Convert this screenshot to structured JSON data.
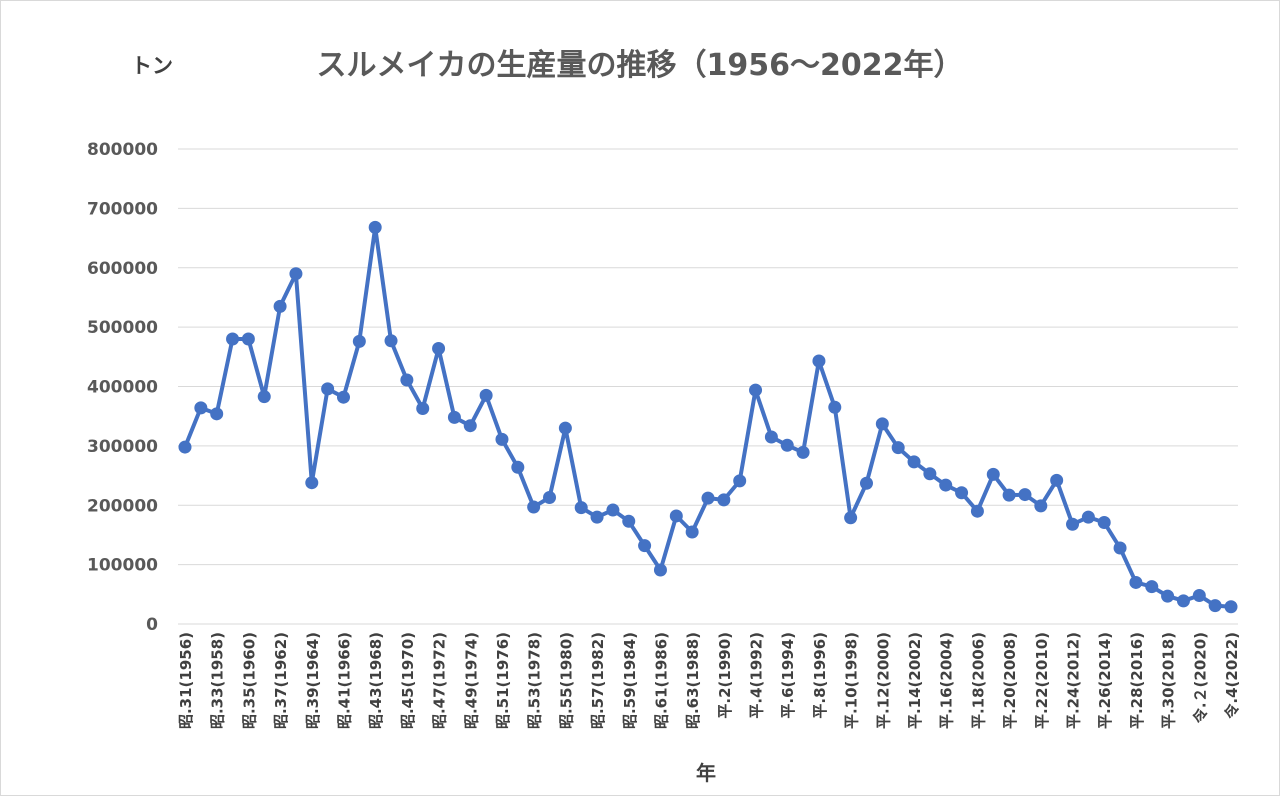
{
  "chart_data": {
    "type": "line",
    "title": "スルメイカの生産量の推移（1956～2022年）",
    "ylabel": "トン",
    "xlabel": "年",
    "ylim": [
      0,
      800000
    ],
    "yticks": [
      0,
      100000,
      200000,
      300000,
      400000,
      500000,
      600000,
      700000,
      800000
    ],
    "grid": true,
    "color": "#4472C4",
    "x": [
      1956,
      1957,
      1958,
      1959,
      1960,
      1961,
      1962,
      1963,
      1964,
      1965,
      1966,
      1967,
      1968,
      1969,
      1970,
      1971,
      1972,
      1973,
      1974,
      1975,
      1976,
      1977,
      1978,
      1979,
      1980,
      1981,
      1982,
      1983,
      1984,
      1985,
      1986,
      1987,
      1988,
      1989,
      1990,
      1991,
      1992,
      1993,
      1994,
      1995,
      1996,
      1997,
      1998,
      1999,
      2000,
      2001,
      2002,
      2003,
      2004,
      2005,
      2006,
      2007,
      2008,
      2009,
      2010,
      2011,
      2012,
      2013,
      2014,
      2015,
      2016,
      2017,
      2018,
      2019,
      2020,
      2021,
      2022
    ],
    "values": [
      298000,
      364000,
      354000,
      480000,
      480000,
      383000,
      535000,
      590000,
      238000,
      396000,
      382000,
      476000,
      668000,
      477000,
      411000,
      363000,
      464000,
      348000,
      334000,
      385000,
      311000,
      264000,
      197000,
      213000,
      330000,
      196000,
      180000,
      192000,
      173000,
      132000,
      91000,
      182000,
      155000,
      212000,
      209000,
      241000,
      394000,
      315000,
      301000,
      289000,
      443000,
      365000,
      179000,
      237000,
      337000,
      297000,
      273000,
      253000,
      234000,
      221000,
      190000,
      252000,
      217000,
      218000,
      199000,
      242000,
      168000,
      180000,
      171000,
      128000,
      70000,
      63000,
      47000,
      39000,
      48000,
      31000,
      29000
    ],
    "categories": [
      "昭.31(1956)",
      "昭.33(1958)",
      "昭.35(1960)",
      "昭.37(1962)",
      "昭.39(1964)",
      "昭.41(1966)",
      "昭.43(1968)",
      "昭.45(1970)",
      "昭.47(1972)",
      "昭.49(1974)",
      "昭.51(1976)",
      "昭.53(1978)",
      "昭.55(1980)",
      "昭.57(1982)",
      "昭.59(1984)",
      "昭.61(1986)",
      "昭.63(1988)",
      "平.2(1990)",
      "平.4(1992)",
      "平.6(1994)",
      "平.8(1996)",
      "平.10(1998)",
      "平.12(2000)",
      "平.14(2002)",
      "平.16(2004)",
      "平.18(2006)",
      "平.20(2008)",
      "平.22(2010)",
      "平.24(2012)",
      "平.26(2014)",
      "平.28(2016)",
      "平.30(2018)",
      "令.２(2020)",
      "令.4(2022)"
    ]
  }
}
